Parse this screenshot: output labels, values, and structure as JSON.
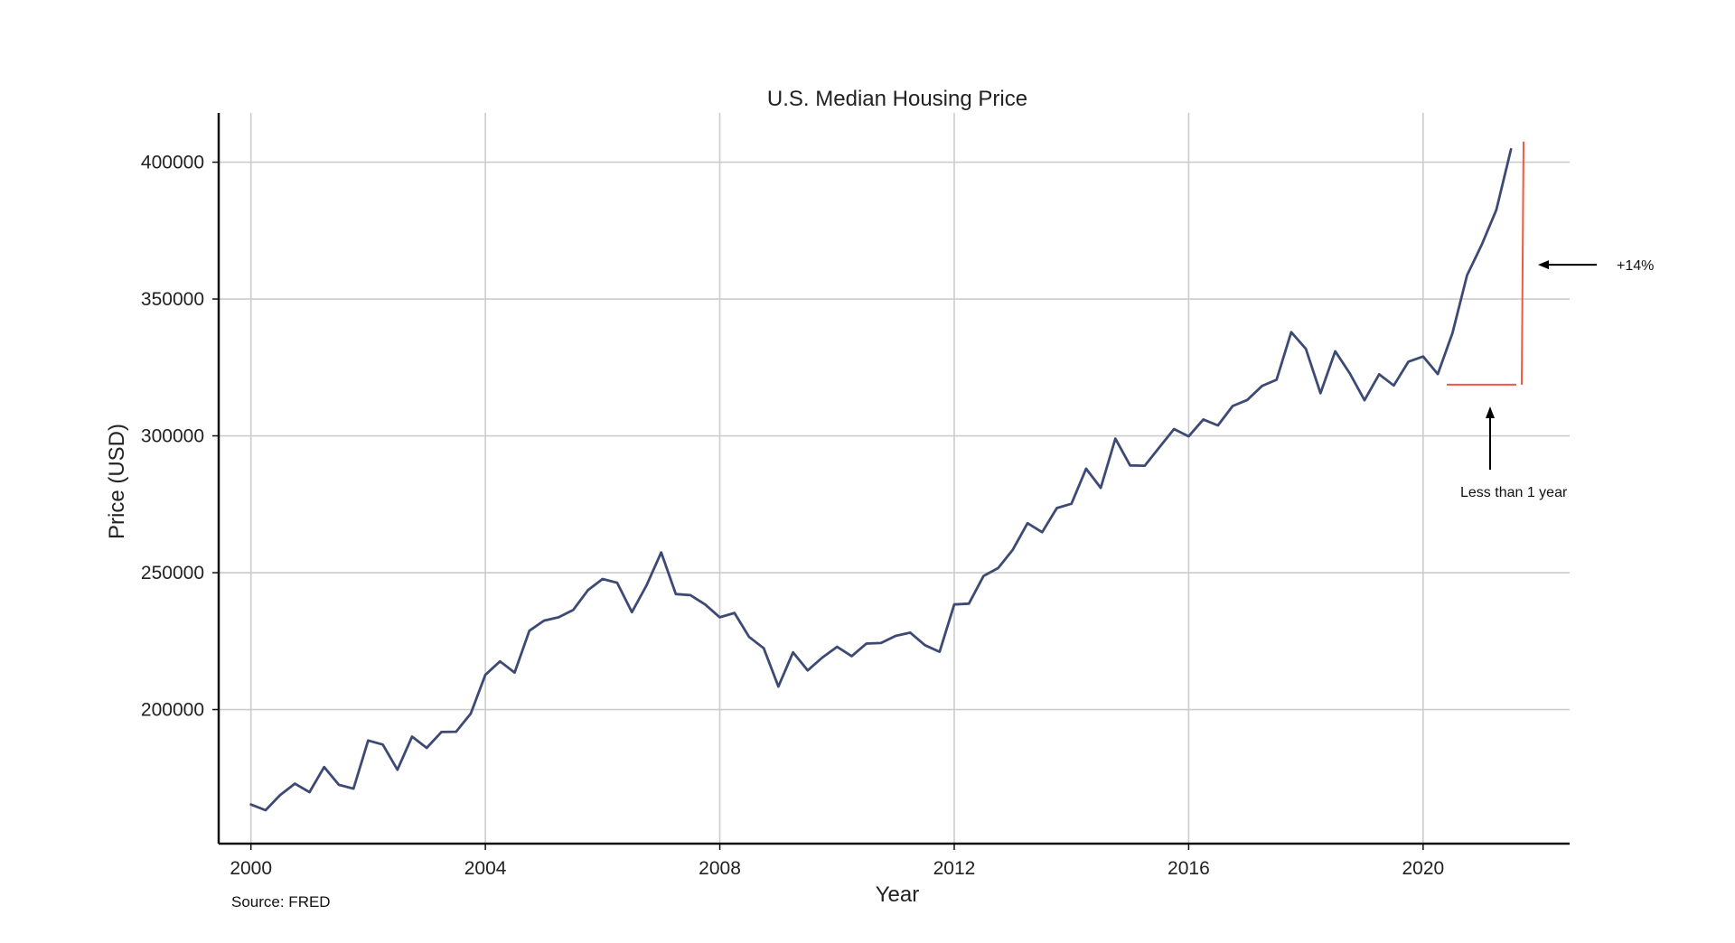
{
  "chart_data": {
    "type": "line",
    "title": "U.S. Median Housing Price",
    "xlabel": "Year",
    "ylabel": "Price (USD)",
    "xlim": [
      1999.45,
      2022.5
    ],
    "ylim": [
      151000,
      418000
    ],
    "xticks": [
      2000,
      2004,
      2008,
      2012,
      2016,
      2020
    ],
    "yticks": [
      200000,
      250000,
      300000,
      350000,
      400000
    ],
    "grid": true,
    "colors": {
      "line": "#3d4a73",
      "annotation_line": "#f05a3f",
      "grid": "#cccccc",
      "axis": "#111111"
    },
    "series": [
      {
        "x": [
          2000.0,
          2000.25,
          2000.5,
          2000.75,
          2001.0,
          2001.25,
          2001.5,
          2001.75,
          2002.0,
          2002.25,
          2002.5,
          2002.75,
          2003.0,
          2003.25,
          2003.5,
          2003.75,
          2004.0,
          2004.25,
          2004.5,
          2004.75,
          2005.0,
          2005.25,
          2005.5,
          2005.75,
          2006.0,
          2006.25,
          2006.5,
          2006.75,
          2007.0,
          2007.25,
          2007.5,
          2007.75,
          2008.0,
          2008.25,
          2008.5,
          2008.75,
          2009.0,
          2009.25,
          2009.5,
          2009.75,
          2010.0,
          2010.25,
          2010.5,
          2010.75,
          2011.0,
          2011.25,
          2011.5,
          2011.75,
          2012.0,
          2012.25,
          2012.5,
          2012.75,
          2013.0,
          2013.25,
          2013.5,
          2013.75,
          2014.0,
          2014.25,
          2014.5,
          2014.75,
          2015.0,
          2015.25,
          2015.5,
          2015.75,
          2016.0,
          2016.25,
          2016.5,
          2016.75,
          2017.0,
          2017.25,
          2017.5,
          2017.75,
          2018.0,
          2018.25,
          2018.5,
          2018.75,
          2019.0,
          2019.25,
          2019.5,
          2019.75,
          2020.0,
          2020.25,
          2020.5,
          2020.75,
          2021.0,
          2021.25,
          2021.5
        ],
        "values": [
          165300,
          163200,
          168800,
          172900,
          169800,
          179000,
          172500,
          171100,
          188700,
          187200,
          178000,
          190100,
          186000,
          191800,
          191900,
          198500,
          212700,
          217600,
          213500,
          228800,
          232500,
          233700,
          236400,
          243600,
          247700,
          246300,
          235600,
          245400,
          257400,
          242200,
          241800,
          238400,
          233700,
          235300,
          226500,
          222400,
          208400,
          220900,
          214300,
          219000,
          222900,
          219500,
          224100,
          224300,
          226900,
          228100,
          223500,
          221100,
          238400,
          238700,
          248800,
          251700,
          258400,
          268100,
          264800,
          273600,
          275200,
          288000,
          281000,
          299000,
          289200,
          289100,
          295800,
          302500,
          299800,
          306000,
          303800,
          310900,
          313100,
          318200,
          320500,
          337900,
          331800,
          315600,
          330900,
          322800,
          313000,
          322500,
          318400,
          327100,
          329000,
          322600,
          337500,
          358700,
          369800,
          382600,
          404700
        ]
      }
    ],
    "annotations": [
      {
        "text": "+14%"
      },
      {
        "text": "Less than 1 year"
      }
    ],
    "source": "Source: FRED"
  }
}
